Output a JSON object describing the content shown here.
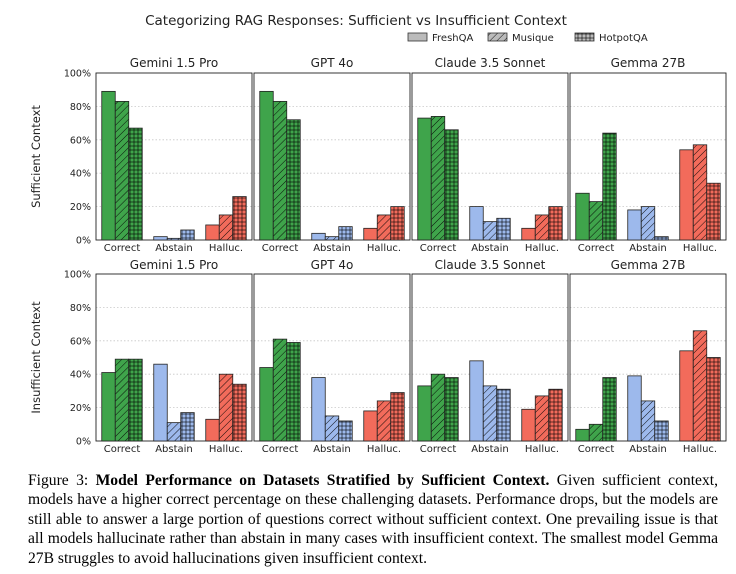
{
  "figure": {
    "title": "Categorizing RAG Responses: Sufficient vs Insufficient Context",
    "legend": [
      "FreshQA",
      "Musique",
      "HotpotQA"
    ],
    "legend_placement": "top-right",
    "row_labels": [
      "Sufficient Context",
      "Insufficient Context"
    ],
    "colors": {
      "correct": "#3fa44b",
      "abstain": "#9db9ec",
      "halluc": "#f26b5b"
    }
  },
  "chart_data": [
    {
      "type": "bar",
      "title": "Gemini 1.5 Pro",
      "row": "Sufficient Context",
      "categories": [
        "Correct",
        "Abstain",
        "Halluc."
      ],
      "ylim": [
        0,
        100
      ],
      "yticks": [
        "0%",
        "20%",
        "40%",
        "60%",
        "80%",
        "100%"
      ],
      "grid": true,
      "series": [
        {
          "name": "FreshQA",
          "values": [
            89,
            2,
            9
          ]
        },
        {
          "name": "Musique",
          "values": [
            83,
            1,
            15
          ]
        },
        {
          "name": "HotpotQA",
          "values": [
            67,
            6,
            26
          ]
        }
      ]
    },
    {
      "type": "bar",
      "title": "GPT 4o",
      "row": "Sufficient Context",
      "categories": [
        "Correct",
        "Abstain",
        "Halluc."
      ],
      "ylim": [
        0,
        100
      ],
      "yticks": [
        "0%",
        "20%",
        "40%",
        "60%",
        "80%",
        "100%"
      ],
      "grid": true,
      "series": [
        {
          "name": "FreshQA",
          "values": [
            89,
            4,
            7
          ]
        },
        {
          "name": "Musique",
          "values": [
            83,
            2,
            15
          ]
        },
        {
          "name": "HotpotQA",
          "values": [
            72,
            8,
            20
          ]
        }
      ]
    },
    {
      "type": "bar",
      "title": "Claude 3.5 Sonnet",
      "row": "Sufficient Context",
      "categories": [
        "Correct",
        "Abstain",
        "Halluc."
      ],
      "ylim": [
        0,
        100
      ],
      "yticks": [
        "0%",
        "20%",
        "40%",
        "60%",
        "80%",
        "100%"
      ],
      "grid": true,
      "series": [
        {
          "name": "FreshQA",
          "values": [
            73,
            20,
            7
          ]
        },
        {
          "name": "Musique",
          "values": [
            74,
            11,
            15
          ]
        },
        {
          "name": "HotpotQA",
          "values": [
            66,
            13,
            20
          ]
        }
      ]
    },
    {
      "type": "bar",
      "title": "Gemma 27B",
      "row": "Sufficient Context",
      "categories": [
        "Correct",
        "Abstain",
        "Halluc."
      ],
      "ylim": [
        0,
        100
      ],
      "yticks": [
        "0%",
        "20%",
        "40%",
        "60%",
        "80%",
        "100%"
      ],
      "grid": true,
      "series": [
        {
          "name": "FreshQA",
          "values": [
            28,
            18,
            54
          ]
        },
        {
          "name": "Musique",
          "values": [
            23,
            20,
            57
          ]
        },
        {
          "name": "HotpotQA",
          "values": [
            64,
            2,
            34
          ]
        }
      ]
    },
    {
      "type": "bar",
      "title": "Gemini 1.5 Pro",
      "row": "Insufficient Context",
      "categories": [
        "Correct",
        "Abstain",
        "Halluc."
      ],
      "ylim": [
        0,
        100
      ],
      "yticks": [
        "0%",
        "20%",
        "40%",
        "60%",
        "80%",
        "100%"
      ],
      "grid": true,
      "series": [
        {
          "name": "FreshQA",
          "values": [
            41,
            46,
            13
          ]
        },
        {
          "name": "Musique",
          "values": [
            49,
            11,
            40
          ]
        },
        {
          "name": "HotpotQA",
          "values": [
            49,
            17,
            34
          ]
        }
      ]
    },
    {
      "type": "bar",
      "title": "GPT 4o",
      "row": "Insufficient Context",
      "categories": [
        "Correct",
        "Abstain",
        "Halluc."
      ],
      "ylim": [
        0,
        100
      ],
      "yticks": [
        "0%",
        "20%",
        "40%",
        "60%",
        "80%",
        "100%"
      ],
      "grid": true,
      "series": [
        {
          "name": "FreshQA",
          "values": [
            44,
            38,
            18
          ]
        },
        {
          "name": "Musique",
          "values": [
            61,
            15,
            24
          ]
        },
        {
          "name": "HotpotQA",
          "values": [
            59,
            12,
            29
          ]
        }
      ]
    },
    {
      "type": "bar",
      "title": "Claude 3.5 Sonnet",
      "row": "Insufficient Context",
      "categories": [
        "Correct",
        "Abstain",
        "Halluc."
      ],
      "ylim": [
        0,
        100
      ],
      "yticks": [
        "0%",
        "20%",
        "40%",
        "60%",
        "80%",
        "100%"
      ],
      "grid": true,
      "series": [
        {
          "name": "FreshQA",
          "values": [
            33,
            48,
            19
          ]
        },
        {
          "name": "Musique",
          "values": [
            40,
            33,
            27
          ]
        },
        {
          "name": "HotpotQA",
          "values": [
            38,
            31,
            31
          ]
        }
      ]
    },
    {
      "type": "bar",
      "title": "Gemma 27B",
      "row": "Insufficient Context",
      "categories": [
        "Correct",
        "Abstain",
        "Halluc."
      ],
      "ylim": [
        0,
        100
      ],
      "yticks": [
        "0%",
        "20%",
        "40%",
        "60%",
        "80%",
        "100%"
      ],
      "grid": true,
      "series": [
        {
          "name": "FreshQA",
          "values": [
            7,
            39,
            54
          ]
        },
        {
          "name": "Musique",
          "values": [
            10,
            24,
            66
          ]
        },
        {
          "name": "HotpotQA",
          "values": [
            38,
            12,
            50
          ]
        }
      ]
    }
  ],
  "caption": {
    "label": "Figure 3:",
    "bold": "Model Performance on Datasets Stratified by Sufficient Context.",
    "text": "Given sufficient context, models have a higher correct percentage on these challenging datasets. Performance drops, but the models are still able to answer a large portion of questions correct without sufficient context. One prevailing issue is that all models hallucinate rather than abstain in many cases with insufficient context. The smallest model Gemma 27B struggles to avoid hallucinations given insufficient context."
  }
}
